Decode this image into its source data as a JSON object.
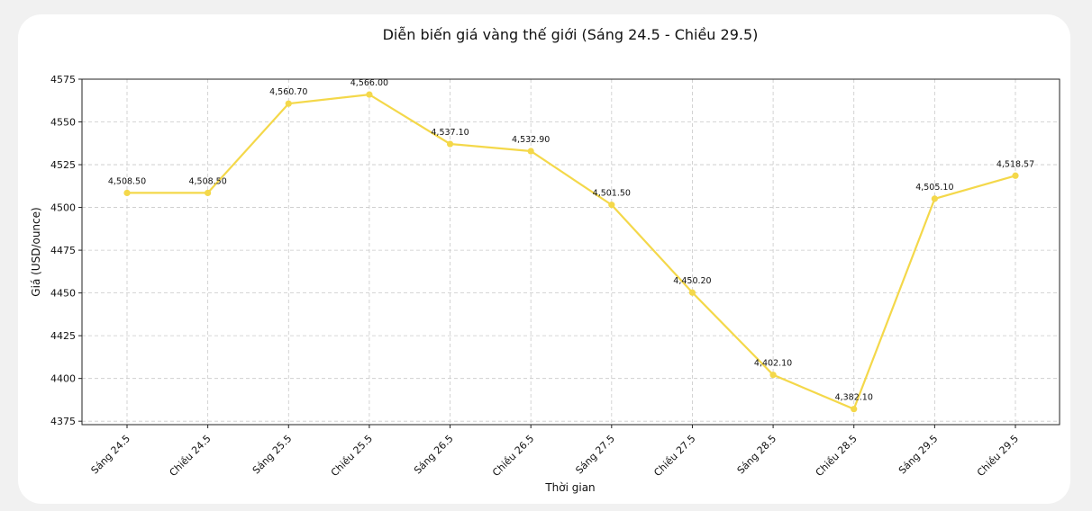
{
  "chart_data": {
    "type": "line",
    "title": "Diễn biến giá vàng thế giới (Sáng 24.5 - Chiều 29.5)",
    "xlabel": "Thời gian",
    "ylabel": "Giá (USD/ounce)",
    "categories": [
      "Sáng 24.5",
      "Chiều 24.5",
      "Sáng 25.5",
      "Chiều 25.5",
      "Sáng 26.5",
      "Chiều 26.5",
      "Sáng 27.5",
      "Chiều 27.5",
      "Sáng 28.5",
      "Chiều 28.5",
      "Sáng 29.5",
      "Chiều 29.5"
    ],
    "values": [
      4508.5,
      4508.5,
      4560.7,
      4566.0,
      4537.1,
      4532.9,
      4501.5,
      4450.2,
      4402.1,
      4382.1,
      4505.1,
      4518.57
    ],
    "value_labels": [
      "4,508.50",
      "4,508.50",
      "4,560.70",
      "4,566.00",
      "4,537.10",
      "4,532.90",
      "4,501.50",
      "4,450.20",
      "4,402.10",
      "4,382.10",
      "4,505.10",
      "4,518.57"
    ],
    "ylim": [
      4373,
      4575
    ],
    "yticks": [
      4375,
      4400,
      4425,
      4450,
      4475,
      4500,
      4525,
      4550,
      4575
    ],
    "grid": true,
    "line_color": "#f4d84a",
    "marker_color": "#f4d84a"
  }
}
